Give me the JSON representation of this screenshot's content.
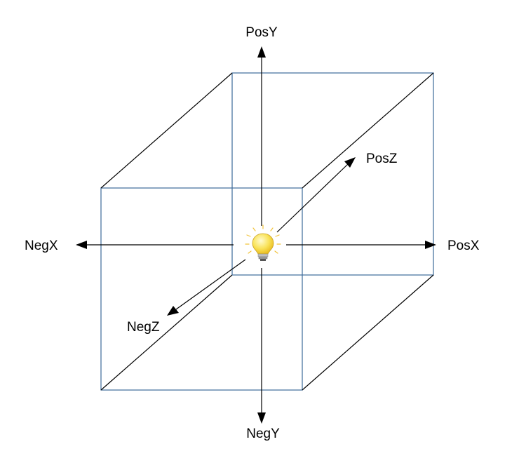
{
  "axes": {
    "pos_y": "PosY",
    "neg_y": "NegY",
    "pos_x": "PosX",
    "neg_x": "NegX",
    "pos_z": "PosZ",
    "neg_z": "NegZ"
  },
  "light_icon": "lightbulb-icon",
  "colors": {
    "front_face": "#3d6a99",
    "edges": "#000000",
    "bulb_glow": "#f7d23a"
  }
}
